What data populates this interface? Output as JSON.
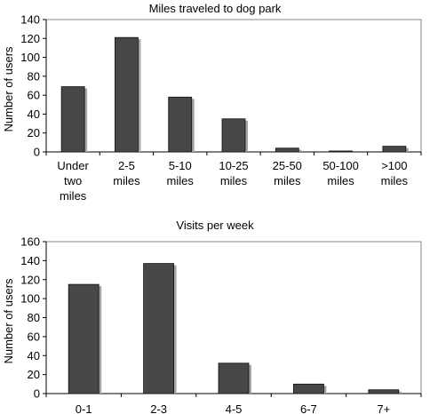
{
  "chart_data": [
    {
      "type": "bar",
      "title": "Miles traveled to dog park",
      "ylabel": "Number of users",
      "xlabel": "",
      "categories": [
        "Under\ntwo\nmiles",
        "2-5\nmiles",
        "5-10\nmiles",
        "10-25\nmiles",
        "25-50\nmiles",
        "50-100\nmiles",
        ">100\nmiles"
      ],
      "values": [
        69,
        121,
        58,
        35,
        4,
        1,
        6
      ],
      "ylim": [
        0,
        140
      ],
      "yticks": [
        0,
        20,
        40,
        60,
        80,
        100,
        120,
        140
      ],
      "grid": false,
      "bar_color": "#474747",
      "shadow_color": "#a6a6a6"
    },
    {
      "type": "bar",
      "title": "Visits per week",
      "ylabel": "Number of users",
      "xlabel": "",
      "categories": [
        "0-1",
        "2-3",
        "4-5",
        "6-7",
        "7+"
      ],
      "values": [
        115,
        137,
        32,
        10,
        4
      ],
      "ylim": [
        0,
        160
      ],
      "yticks": [
        0,
        20,
        40,
        60,
        80,
        100,
        120,
        140,
        160
      ],
      "grid": false,
      "bar_color": "#474747",
      "shadow_color": "#a6a6a6"
    }
  ]
}
